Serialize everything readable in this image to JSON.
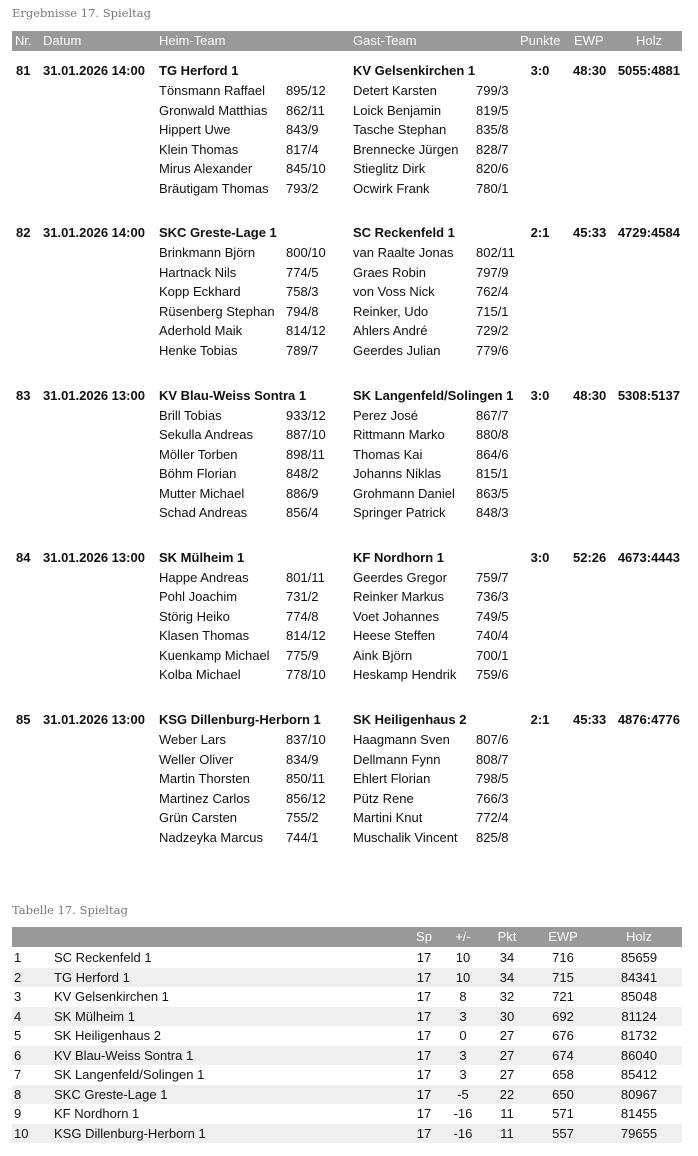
{
  "results": {
    "title": "Ergebnisse 17. Spieltag",
    "headers": {
      "nr": "Nr.",
      "datum": "Datum",
      "heim": "Heim-Team",
      "gast": "Gast-Team",
      "punkte": "Punkte",
      "ewp": "EWP",
      "holz": "Holz"
    },
    "games": [
      {
        "nr": "81",
        "datum": "31.01.2026 14:00",
        "heim": "TG Herford 1",
        "gast": "KV Gelsenkirchen 1",
        "punkte": "3:0",
        "ewp": "48:30",
        "holz": "5055:4881",
        "players": [
          [
            "Tönsmann Raffael",
            "895/12",
            "Detert Karsten",
            "799/3"
          ],
          [
            "Gronwald Matthias",
            "862/11",
            "Loick Benjamin",
            "819/5"
          ],
          [
            "Hippert Uwe",
            "843/9",
            "Tasche Stephan",
            "835/8"
          ],
          [
            "Klein Thomas",
            "817/4",
            "Brennecke Jürgen",
            "828/7"
          ],
          [
            "Mirus Alexander",
            "845/10",
            "Stieglitz Dirk",
            "820/6"
          ],
          [
            "Bräutigam Thomas",
            "793/2",
            "Ocwirk Frank",
            "780/1"
          ]
        ]
      },
      {
        "nr": "82",
        "datum": "31.01.2026 14:00",
        "heim": "SKC Greste-Lage 1",
        "gast": "SC Reckenfeld 1",
        "punkte": "2:1",
        "ewp": "45:33",
        "holz": "4729:4584",
        "players": [
          [
            "Brinkmann Björn",
            "800/10",
            "van Raalte Jonas",
            "802/11"
          ],
          [
            "Hartnack Nils",
            "774/5",
            "Graes Robin",
            "797/9"
          ],
          [
            "Kopp Eckhard",
            "758/3",
            "von Voss Nick",
            "762/4"
          ],
          [
            "Rüsenberg Stephan",
            "794/8",
            "Reinker, Udo",
            "715/1"
          ],
          [
            "Aderhold Maik",
            "814/12",
            "Ahlers André",
            "729/2"
          ],
          [
            "Henke Tobias",
            "789/7",
            "Geerdes Julian",
            "779/6"
          ]
        ]
      },
      {
        "nr": "83",
        "datum": "31.01.2026 13:00",
        "heim": "KV Blau-Weiss Sontra 1",
        "gast": "SK Langenfeld/Solingen 1",
        "punkte": "3:0",
        "ewp": "48:30",
        "holz": "5308:5137",
        "players": [
          [
            "Brill Tobias",
            "933/12",
            "Perez José",
            "867/7"
          ],
          [
            "Sekulla Andreas",
            "887/10",
            "Rittmann Marko",
            "880/8"
          ],
          [
            "Möller Torben",
            "898/11",
            "Thomas Kai",
            "864/6"
          ],
          [
            "Böhm Florian",
            "848/2",
            "Johanns Niklas",
            "815/1"
          ],
          [
            "Mutter Michael",
            "886/9",
            "Grohmann Daniel",
            "863/5"
          ],
          [
            "Schad Andreas",
            "856/4",
            "Springer Patrick",
            "848/3"
          ]
        ]
      },
      {
        "nr": "84",
        "datum": "31.01.2026 13:00",
        "heim": "SK Mülheim 1",
        "gast": "KF Nordhorn 1",
        "punkte": "3:0",
        "ewp": "52:26",
        "holz": "4673:4443",
        "players": [
          [
            "Happe Andreas",
            "801/11",
            "Geerdes Gregor",
            "759/7"
          ],
          [
            "Pohl Joachim",
            "731/2",
            "Reinker Markus",
            "736/3"
          ],
          [
            "Störig Heiko",
            "774/8",
            "Voet Johannes",
            "749/5"
          ],
          [
            "Klasen Thomas",
            "814/12",
            "Heese Steffen",
            "740/4"
          ],
          [
            "Kuenkamp Michael",
            "775/9",
            "Aink Björn",
            "700/1"
          ],
          [
            "Kolba Michael",
            "778/10",
            "Heskamp Hendrik",
            "759/6"
          ]
        ]
      },
      {
        "nr": "85",
        "datum": "31.01.2026 13:00",
        "heim": "KSG Dillenburg-Herborn 1",
        "gast": "SK Heiligenhaus 2",
        "punkte": "2:1",
        "ewp": "45:33",
        "holz": "4876:4776",
        "players": [
          [
            "Weber Lars",
            "837/10",
            "Haagmann Sven",
            "807/6"
          ],
          [
            "Weller Oliver",
            "834/9",
            "Dellmann Fynn",
            "808/7"
          ],
          [
            "Martin Thorsten",
            "850/11",
            "Ehlert Florian",
            "798/5"
          ],
          [
            "Martinez Carlos",
            "856/12",
            "Pütz Rene",
            "766/3"
          ],
          [
            "Grün Carsten",
            "755/2",
            "Martini Knut",
            "772/4"
          ],
          [
            "Nadzeyka Marcus",
            "744/1",
            "Muschalik Vincent",
            "825/8"
          ]
        ]
      }
    ]
  },
  "table": {
    "title": "Tabelle 17. Spieltag",
    "headers": {
      "rank": "",
      "team": "",
      "sp": "Sp",
      "diff": "+/-",
      "pkt": "Pkt",
      "ewp": "EWP",
      "holz": "Holz"
    },
    "rows": [
      [
        "1",
        "SC Reckenfeld 1",
        "17",
        "10",
        "34",
        "716",
        "85659"
      ],
      [
        "2",
        "TG Herford 1",
        "17",
        "10",
        "34",
        "715",
        "84341"
      ],
      [
        "3",
        "KV Gelsenkirchen 1",
        "17",
        "8",
        "32",
        "721",
        "85048"
      ],
      [
        "4",
        "SK Mülheim 1",
        "17",
        "3",
        "30",
        "692",
        "81124"
      ],
      [
        "5",
        "SK Heiligenhaus 2",
        "17",
        "0",
        "27",
        "676",
        "81732"
      ],
      [
        "6",
        "KV Blau-Weiss Sontra 1",
        "17",
        "3",
        "27",
        "674",
        "86040"
      ],
      [
        "7",
        "SK Langenfeld/Solingen 1",
        "17",
        "3",
        "27",
        "658",
        "85412"
      ],
      [
        "8",
        "SKC Greste-Lage 1",
        "17",
        "-5",
        "22",
        "650",
        "80967"
      ],
      [
        "9",
        "KF Nordhorn 1",
        "17",
        "-16",
        "11",
        "571",
        "81455"
      ],
      [
        "10",
        "KSG Dillenburg-Herborn 1",
        "17",
        "-16",
        "11",
        "557",
        "79655"
      ]
    ]
  },
  "colors": {
    "header_bg": "#999999",
    "header_text": "#ffffff",
    "stripe": "#efefef",
    "title": "#777777"
  }
}
